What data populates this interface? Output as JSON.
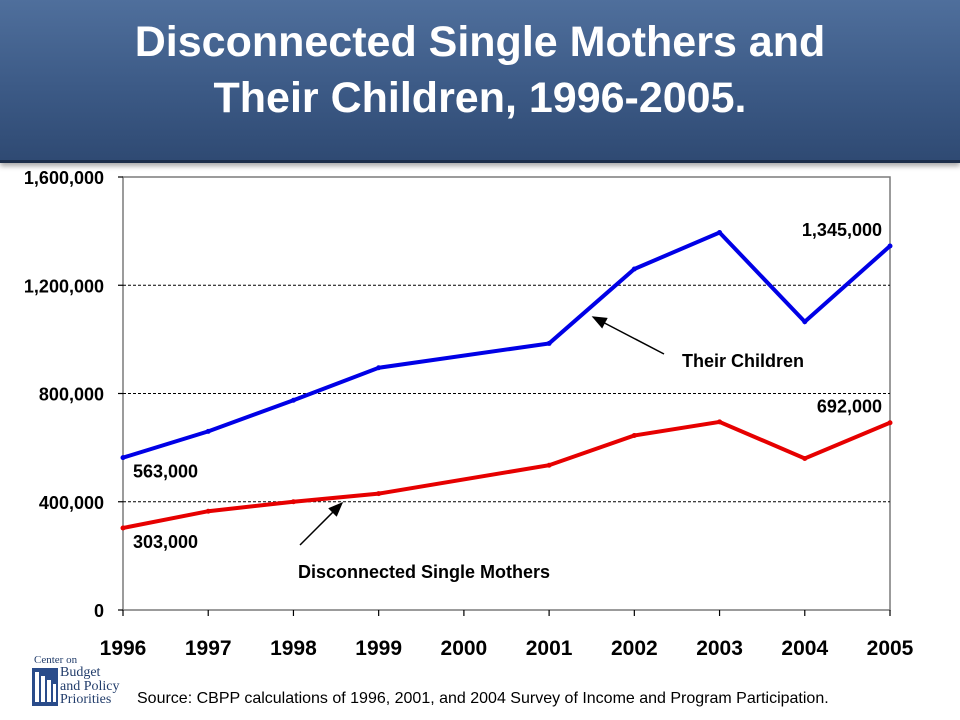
{
  "title_line1": "Disconnected Single Mothers and",
  "title_line2": "Their Children, 1996-2005.",
  "source": "Source: CBPP calculations of 1996, 2001, and 2004 Survey of Income and Program Participation.",
  "logo": {
    "line1": "Center on",
    "line2": "Budget",
    "line3": "and Policy",
    "line4": "Priorities"
  },
  "colors": {
    "banner": "#3c5a86",
    "children_line": "#0000e6",
    "mothers_line": "#e60000"
  },
  "chart_data": {
    "type": "line",
    "categories": [
      "1996",
      "1997",
      "1998",
      "1999",
      "2000",
      "2001",
      "2002",
      "2003",
      "2004",
      "2005"
    ],
    "ylim": [
      0,
      1600000
    ],
    "yticks": [
      0,
      400000,
      800000,
      1200000,
      1600000
    ],
    "ytick_labels": [
      "0",
      "400,000",
      "800,000",
      "1,200,000",
      "1,600,000"
    ],
    "grid": "horizontal dashed",
    "series": [
      {
        "name": "Their Children",
        "color": "#0000e6",
        "points": [
          {
            "x": "1996",
            "y": 563000
          },
          {
            "x": "1997",
            "y": 660000
          },
          {
            "x": "1998",
            "y": 775000
          },
          {
            "x": "1999",
            "y": 895000
          },
          {
            "x": "2001",
            "y": 985000
          },
          {
            "x": "2002",
            "y": 1260000
          },
          {
            "x": "2003",
            "y": 1395000
          },
          {
            "x": "2004",
            "y": 1065000
          },
          {
            "x": "2005",
            "y": 1345000
          }
        ]
      },
      {
        "name": "Disconnected Single Mothers",
        "color": "#e60000",
        "points": [
          {
            "x": "1996",
            "y": 303000
          },
          {
            "x": "1997",
            "y": 365000
          },
          {
            "x": "1998",
            "y": 400000
          },
          {
            "x": "1999",
            "y": 430000
          },
          {
            "x": "2001",
            "y": 535000
          },
          {
            "x": "2002",
            "y": 645000
          },
          {
            "x": "2003",
            "y": 695000
          },
          {
            "x": "2004",
            "y": 560000
          },
          {
            "x": "2005",
            "y": 692000
          }
        ]
      }
    ],
    "data_labels": [
      {
        "series": 0,
        "x": "1996",
        "text": "563,000"
      },
      {
        "series": 0,
        "x": "2005",
        "text": "1,345,000"
      },
      {
        "series": 1,
        "x": "1996",
        "text": "303,000"
      },
      {
        "series": 1,
        "x": "2005",
        "text": "692,000"
      }
    ],
    "annotations": [
      {
        "text": "Their Children",
        "points_to_series": 0
      },
      {
        "text": "Disconnected Single Mothers",
        "points_to_series": 1
      }
    ]
  }
}
